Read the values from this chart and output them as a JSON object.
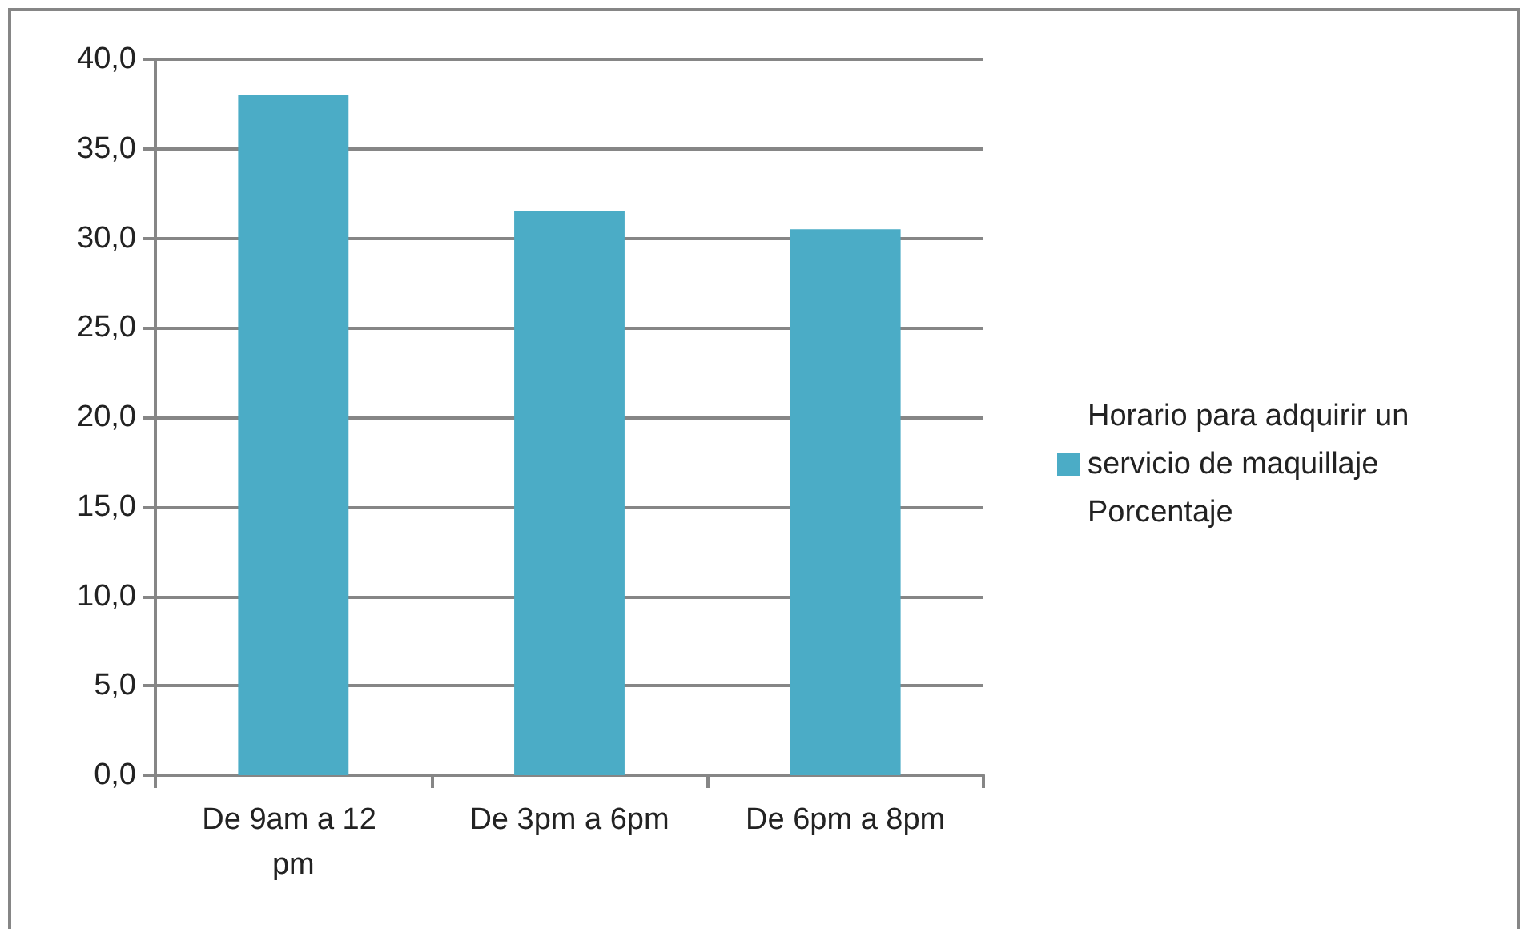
{
  "chart_data": {
    "type": "bar",
    "categories": [
      "De 9am a 12 pm",
      "De 3pm a 6pm",
      "De 6pm a 8pm"
    ],
    "series": [
      {
        "name": "Horario para adquirir un servicio de maquillaje Porcentaje",
        "color": "#4bacc6",
        "values": [
          38.0,
          31.5,
          30.5
        ]
      }
    ],
    "ylim": [
      0,
      40
    ],
    "yticks": [
      {
        "value": 0,
        "label": "0,0"
      },
      {
        "value": 5,
        "label": "5,0"
      },
      {
        "value": 10,
        "label": "10,0"
      },
      {
        "value": 15,
        "label": "15,0"
      },
      {
        "value": 20,
        "label": "20,0"
      },
      {
        "value": 25,
        "label": "25,0"
      },
      {
        "value": 30,
        "label": "30,0"
      },
      {
        "value": 35,
        "label": "35,0"
      },
      {
        "value": 40,
        "label": "40,0"
      }
    ],
    "grid": "y",
    "legend": "right"
  }
}
